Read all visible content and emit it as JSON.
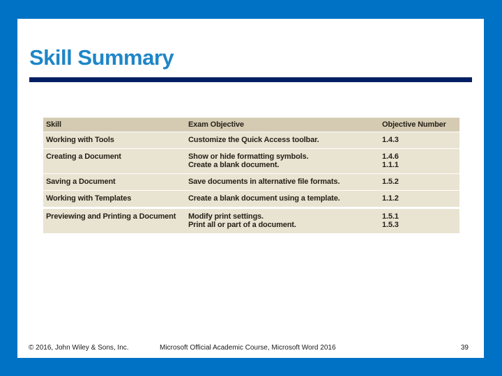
{
  "title": "Skill Summary",
  "table": {
    "headers": [
      "Skill",
      "Exam Objective",
      "Objective Number"
    ],
    "rows": [
      {
        "skill": "Working with Tools",
        "objectives": [
          "Customize the Quick Access toolbar."
        ],
        "numbers": [
          "1.4.3"
        ]
      },
      {
        "skill": "Creating a Document",
        "objectives": [
          "Show or hide formatting symbols.",
          "Create a blank document."
        ],
        "numbers": [
          "1.4.6",
          "1.1.1"
        ]
      },
      {
        "skill": "Saving a Document",
        "objectives": [
          "Save documents in alternative file formats."
        ],
        "numbers": [
          "1.5.2"
        ]
      },
      {
        "skill": "Working with Templates",
        "objectives": [
          "Create a blank document using a template."
        ],
        "numbers": [
          "1.1.2"
        ]
      },
      {
        "skill": "Previewing and Printing a Document",
        "objectives": [
          "Modify print settings.",
          "Print all or part of a document."
        ],
        "numbers": [
          "1.5.1",
          "1.5.3"
        ]
      }
    ]
  },
  "footer": {
    "copyright": "© 2016, John Wiley & Sons, Inc.",
    "course": "Microsoft Official Academic Course, Microsoft Word 2016",
    "page_number": "39"
  },
  "colors": {
    "frame_blue": "#0072C5",
    "title_blue": "#1E86C7",
    "rule_navy": "#001F63",
    "header_bg": "#D5CBB3",
    "row_bg": "#E9E3D2",
    "table_text": "#272218",
    "footer_text": "#1A1A1A"
  }
}
